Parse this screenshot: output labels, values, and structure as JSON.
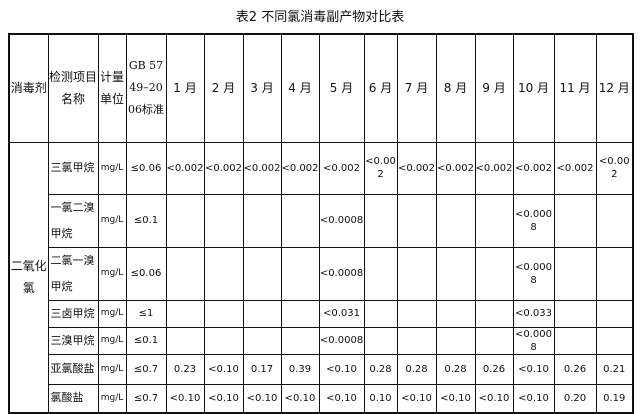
{
  "title": "表2 不同氯消毒副产物对比表",
  "headers": [
    "消毒剂",
    "检测项目名称",
    "计量单位",
    "GB 5749–2006标准",
    "1 月",
    "2 月",
    "3 月",
    "4 月",
    "5 月",
    "6 月",
    "7 月",
    "8 月",
    "9 月",
    "10 月",
    "11 月",
    "12 月"
  ],
  "disinfectant": "二氧化氯",
  "rows": [
    {
      "name": "三氯甲烷",
      "unit": "mg/L",
      "std": "≤0.06",
      "values": [
        "<0.002",
        "<0.002",
        "<0.002",
        "<0.002",
        "<0.002",
        "<0.002",
        "<0.002",
        "<0.002",
        "<0.002",
        "<0.002",
        "<0.002",
        "<0.002"
      ]
    },
    {
      "name": "一氯二溴甲烷",
      "unit": "mg/L",
      "std": "≤0.1",
      "values": [
        "",
        "",
        "",
        "",
        "<0.0008",
        "",
        "",
        "",
        "",
        "<0.0008",
        "",
        ""
      ]
    },
    {
      "name": "二氯一溴甲烷",
      "unit": "mg/L",
      "std": "≤0.06",
      "values": [
        "",
        "",
        "",
        "",
        "<0.0008",
        "",
        "",
        "",
        "",
        "<0.0008",
        "",
        ""
      ]
    },
    {
      "name": "三卤甲烷",
      "unit": "mg/L",
      "std": "≤1",
      "values": [
        "",
        "",
        "",
        "",
        "<0.031",
        "",
        "",
        "",
        "",
        "<0.033",
        "",
        ""
      ]
    },
    {
      "name": "三溴甲烷",
      "unit": "mg/L",
      "std": "≤0.1",
      "values": [
        "",
        "",
        "",
        "",
        "<0.0008",
        "",
        "",
        "",
        "",
        "<0.0008",
        "",
        ""
      ]
    },
    {
      "name": "亚氯酸盐",
      "unit": "mg/L",
      "std": "≤0.7",
      "values": [
        "0.23",
        "<0.10",
        "0.17",
        "0.39",
        "<0.10",
        "0.28",
        "0.28",
        "0.28",
        "0.26",
        "<0.10",
        "0.26",
        "0.21"
      ]
    },
    {
      "name": "氯酸盐",
      "unit": "mg/L",
      "std": "≤0.7",
      "values": [
        "<0.10",
        "<0.10",
        "<0.10",
        "<0.10",
        "<0.10",
        "0.10",
        "<0.10",
        "<0.10",
        "<0.10",
        "<0.10",
        "0.20",
        "0.19"
      ]
    }
  ]
}
